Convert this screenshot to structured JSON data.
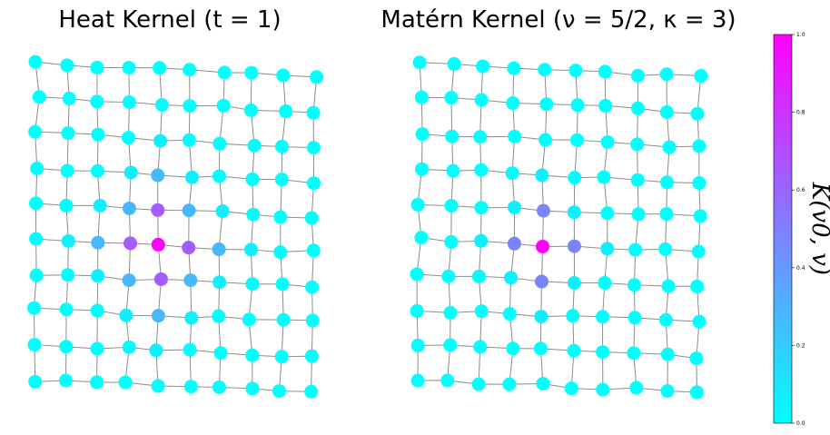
{
  "chart_data": {
    "type": "scatter",
    "description_kind": "grid-graph kernel values",
    "grid": {
      "rows": 10,
      "cols": 10,
      "edges": "4-neighbour grid"
    },
    "panels": [
      {
        "title": "Heat Kernel (t = 1)",
        "center_node": [
          5,
          4
        ],
        "decay": 0.9
      },
      {
        "title": "Matérn Kernel (ν = 5/2, κ = 3)",
        "center_node": [
          5,
          4
        ],
        "decay": 0.58
      }
    ],
    "colorbar": {
      "label": "K(v0, v)",
      "range": [
        0.0,
        1.0
      ],
      "ticks": [
        "0.0",
        "0.2",
        "0.4",
        "0.6",
        "0.8",
        "1.0"
      ],
      "colormap": "cool",
      "low_color": "#00ffff",
      "high_color": "#ff00ff"
    },
    "edge_color": "#8c8c8c"
  }
}
